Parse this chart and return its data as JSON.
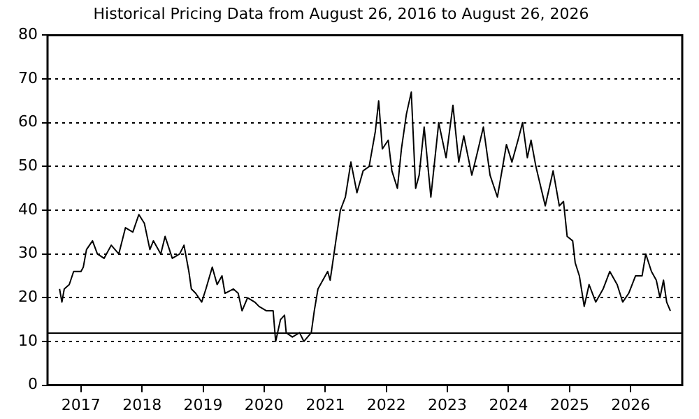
{
  "chart_data": {
    "type": "line",
    "title": "Historical Pricing Data from August 26, 2016 to August 26, 2026",
    "x": [
      "2016-08-26",
      "2016-09-09",
      "2016-09-23",
      "2016-10-23",
      "2016-11-18",
      "2017-01-01",
      "2017-01-15",
      "2017-02-03",
      "2017-03-11",
      "2017-04-09",
      "2017-05-19",
      "2017-07-01",
      "2017-08-15",
      "2017-09-24",
      "2017-11-07",
      "2017-12-13",
      "2018-01-15",
      "2018-02-17",
      "2018-03-10",
      "2018-04-23",
      "2018-05-19",
      "2018-07-01",
      "2018-08-14",
      "2018-09-09",
      "2018-10-08",
      "2018-10-23",
      "2018-11-18",
      "2018-12-24",
      "2019-01-18",
      "2019-02-25",
      "2019-03-26",
      "2019-04-24",
      "2019-05-12",
      "2019-07-01",
      "2019-07-30",
      "2019-08-22",
      "2019-09-24",
      "2019-11-06",
      "2019-12-02",
      "2020-01-15",
      "2020-02-24",
      "2020-03-10",
      "2020-04-08",
      "2020-05-02",
      "2020-05-12",
      "2020-06-18",
      "2020-07-31",
      "2020-08-26",
      "2020-10-09",
      "2020-10-27",
      "2020-11-18",
      "2021-01-15",
      "2021-01-30",
      "2021-03-05",
      "2021-04-01",
      "2021-05-01",
      "2021-06-03",
      "2021-07-09",
      "2021-08-15",
      "2021-09-20",
      "2021-10-27",
      "2021-11-16",
      "2021-12-08",
      "2022-01-12",
      "2022-02-03",
      "2022-03-08",
      "2022-04-01",
      "2022-05-01",
      "2022-05-30",
      "2022-06-25",
      "2022-07-16",
      "2022-08-15",
      "2022-09-24",
      "2022-11-10",
      "2022-12-24",
      "2023-02-03",
      "2023-03-10",
      "2023-04-09",
      "2023-05-27",
      "2023-06-28",
      "2023-08-04",
      "2023-09-13",
      "2023-10-27",
      "2023-12-20",
      "2024-01-22",
      "2024-02-27",
      "2024-03-25",
      "2024-04-23",
      "2024-05-15",
      "2024-06-13",
      "2024-08-08",
      "2024-09-24",
      "2024-10-31",
      "2024-11-25",
      "2024-12-17",
      "2025-01-19",
      "2025-02-03",
      "2025-02-28",
      "2025-03-29",
      "2025-04-27",
      "2025-06-06",
      "2025-07-20",
      "2025-08-29",
      "2025-10-12",
      "2025-11-14",
      "2025-12-20",
      "2026-01-30",
      "2026-03-10",
      "2026-04-01",
      "2026-05-05",
      "2026-06-03",
      "2026-06-25",
      "2026-07-16",
      "2026-08-04",
      "2026-08-26"
    ],
    "series": [
      {
        "color": "#000000",
        "values": [
          22,
          19,
          22,
          23,
          26,
          26,
          27,
          31,
          33,
          30,
          29,
          32,
          30,
          36,
          35,
          39,
          37,
          31,
          33,
          30,
          34,
          29,
          30,
          32,
          26,
          22,
          21,
          19,
          22,
          27,
          23,
          25,
          21,
          22,
          21,
          17,
          20,
          19,
          18,
          17,
          17,
          10,
          15,
          16,
          12,
          11,
          12,
          10,
          12,
          17,
          22,
          26,
          24,
          33,
          40,
          43,
          51,
          44,
          49,
          50,
          58,
          65,
          54,
          56,
          49,
          45,
          54,
          62,
          67,
          45,
          48,
          59,
          43,
          60,
          52,
          64,
          51,
          57,
          48,
          53,
          59,
          48,
          43,
          55,
          51,
          56,
          60,
          52,
          56,
          50,
          41,
          49,
          41,
          42,
          34,
          33,
          28,
          25,
          18,
          23,
          19,
          22,
          26,
          23,
          19,
          21,
          25,
          25,
          30,
          26,
          24,
          20,
          24,
          19,
          17
        ]
      }
    ],
    "xlim": [
      "2016-06-15",
      "2026-11-05"
    ],
    "xticks": [
      "2017",
      "2018",
      "2019",
      "2020",
      "2021",
      "2022",
      "2023",
      "2024",
      "2025",
      "2026"
    ],
    "ylim": [
      0,
      80
    ],
    "yticks": [
      0,
      10,
      20,
      30,
      40,
      50,
      60,
      70,
      80
    ],
    "grid": "y",
    "line_style": "solid",
    "ref_lines": [
      {
        "axis": "y",
        "value": 12,
        "color": "#000000",
        "line_style": "solid"
      }
    ]
  }
}
